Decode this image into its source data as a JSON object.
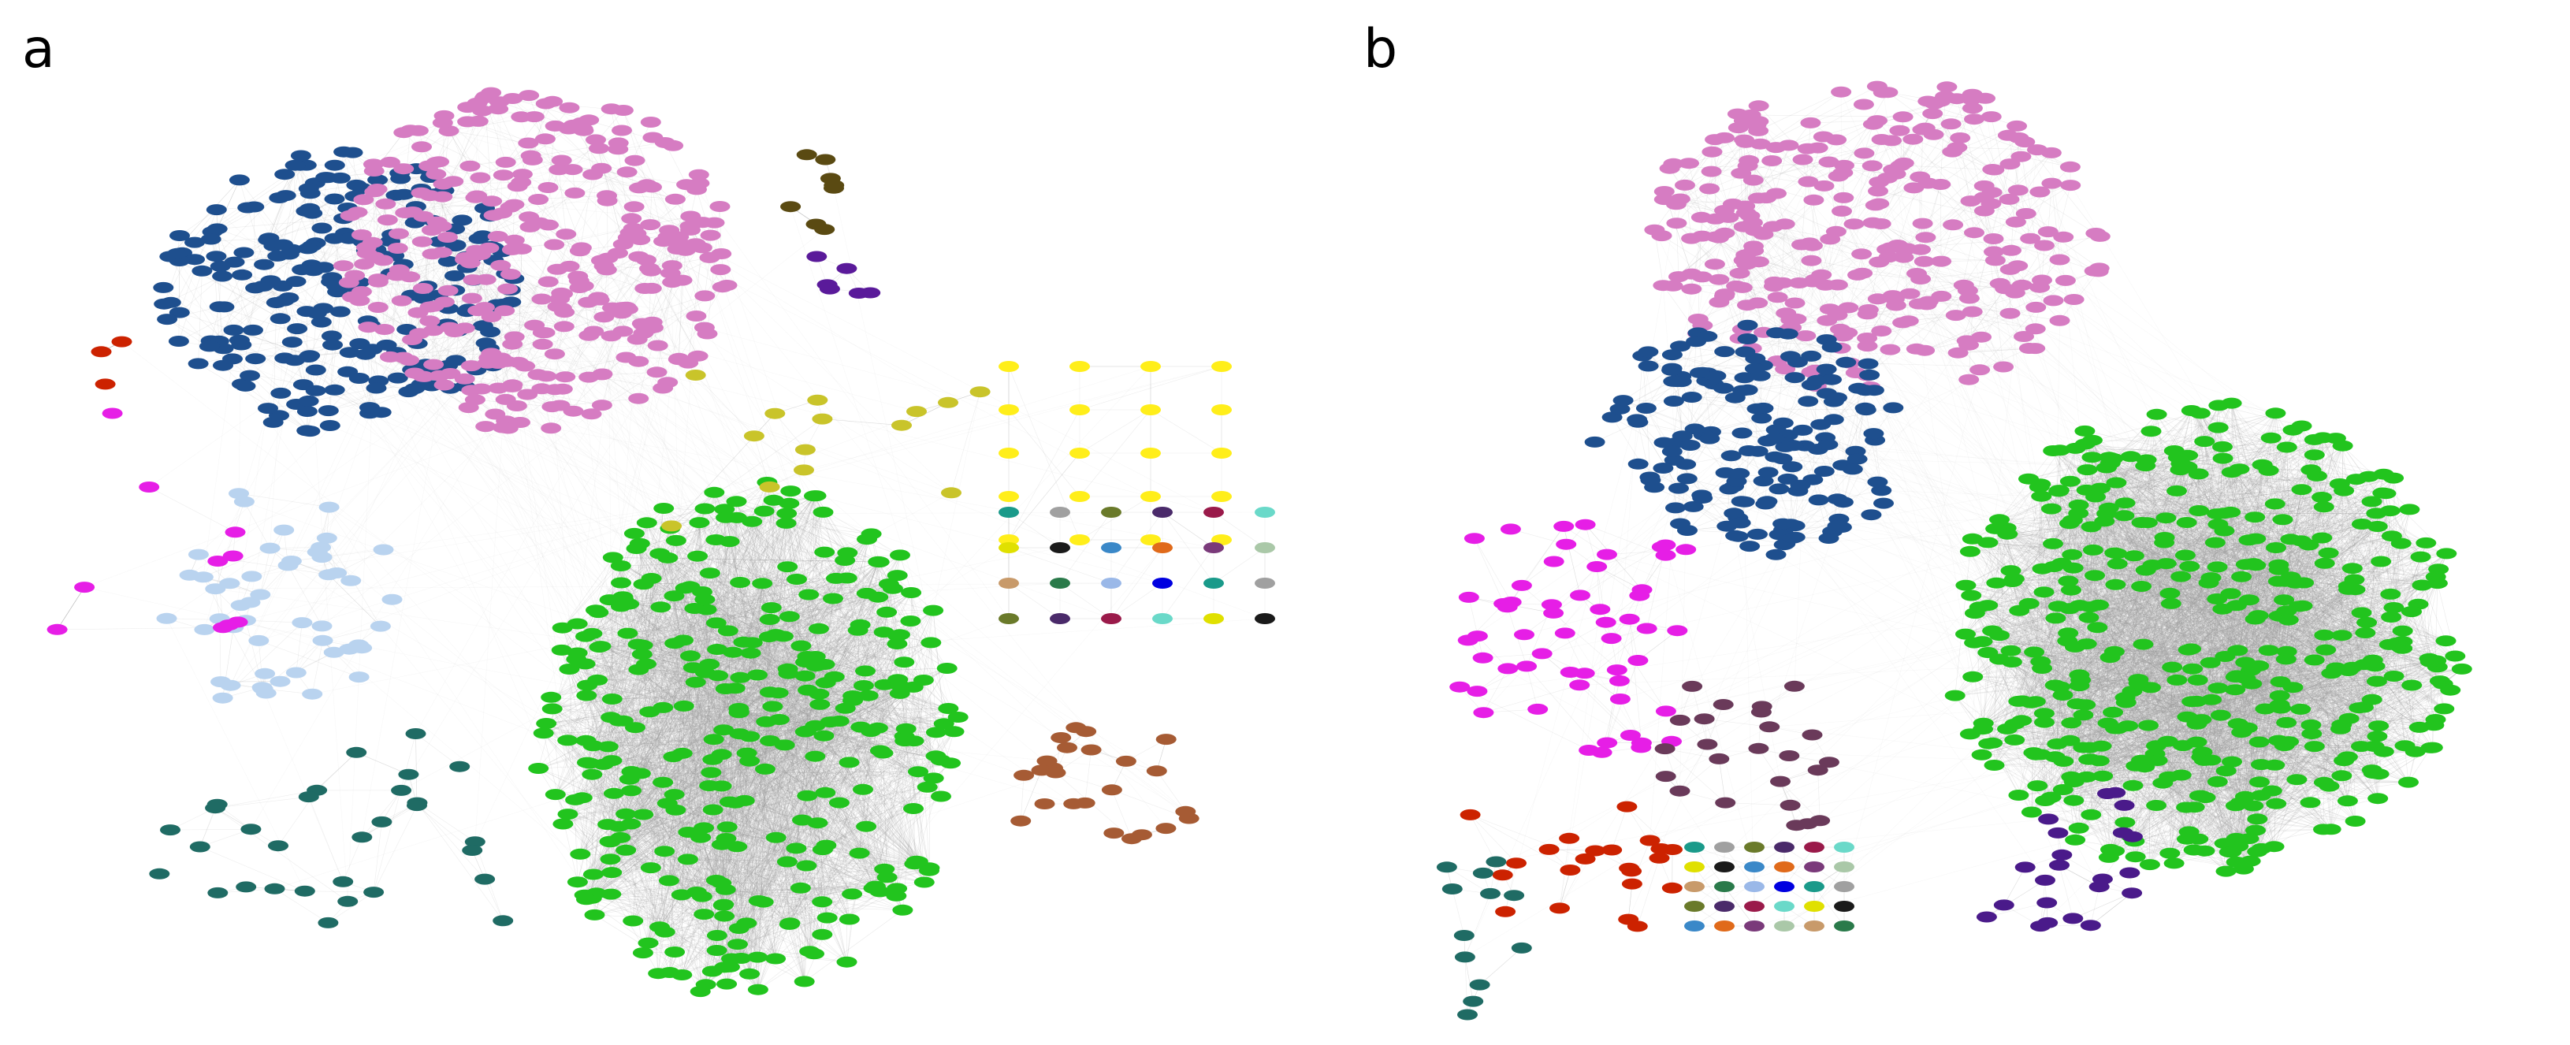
{
  "figure": {
    "panels": [
      {
        "label": "a",
        "clusters": [
          {
            "id": "green-core",
            "color": "#22c41e",
            "nodes": 360,
            "edge_color": "#9a9a9a",
            "dense": true
          },
          {
            "id": "navy",
            "color": "#1e4f8e",
            "nodes": 230
          },
          {
            "id": "pink",
            "color": "#d67cc2",
            "nodes": 330
          },
          {
            "id": "light-blue",
            "color": "#b9d3ef",
            "nodes": 50
          },
          {
            "id": "teal",
            "color": "#1f6b64",
            "nodes": 30
          },
          {
            "id": "brown",
            "color": "#a65b34",
            "nodes": 24
          },
          {
            "id": "yellow",
            "color": "#ffee1a",
            "nodes": 24
          },
          {
            "id": "olive",
            "color": "#c9c42a",
            "nodes": 14
          },
          {
            "id": "magenta",
            "color": "#e61ee6",
            "nodes": 10
          },
          {
            "id": "red",
            "color": "#cc2200",
            "nodes": 3
          },
          {
            "id": "purple",
            "color": "#5a1a9a",
            "nodes": 6
          },
          {
            "id": "dark-olive",
            "color": "#5a4a12",
            "nodes": 8
          },
          {
            "id": "mixed-small",
            "color": "#888888",
            "nodes": 40
          }
        ]
      },
      {
        "label": "b",
        "clusters": [
          {
            "id": "green-core",
            "color": "#22c41e",
            "nodes": 480,
            "edge_color": "#9a9a9a",
            "dense": true
          },
          {
            "id": "pink",
            "color": "#d67cc2",
            "nodes": 300
          },
          {
            "id": "navy",
            "color": "#1e4f8e",
            "nodes": 170
          },
          {
            "id": "magenta",
            "color": "#e61ee6",
            "nodes": 55
          },
          {
            "id": "red",
            "color": "#cc2200",
            "nodes": 22
          },
          {
            "id": "purple",
            "color": "#4a1a8a",
            "nodes": 22
          },
          {
            "id": "teal",
            "color": "#1f6b64",
            "nodes": 12
          },
          {
            "id": "plum",
            "color": "#6a3a5a",
            "nodes": 24
          },
          {
            "id": "mixed-grid",
            "color": "#888888",
            "nodes": 60
          }
        ]
      }
    ],
    "colors": {
      "background": "#ffffff",
      "edge": "#9a9a9a",
      "label_text": "#222222"
    }
  }
}
